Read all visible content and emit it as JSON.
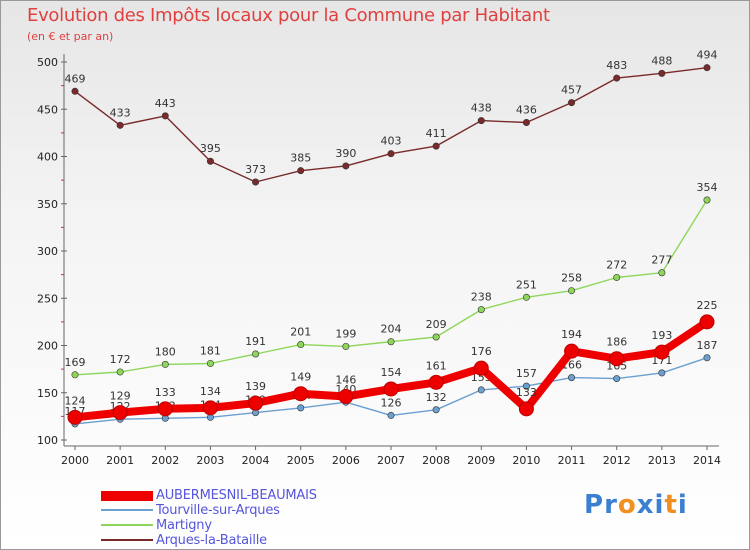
{
  "title": "Evolution des Impôts locaux pour la Commune par Habitant",
  "subtitle": "(en € et par an)",
  "logo": {
    "text": "Proxiti",
    "letters": [
      "P",
      "r",
      "o",
      "x",
      "i",
      "t",
      "i"
    ],
    "colors": [
      "#3a7fd0",
      "#3a7fd0",
      "#f09020",
      "#3a7fd0",
      "#3a7fd0",
      "#f09020",
      "#3a7fd0"
    ]
  },
  "chart_data": {
    "type": "line",
    "title": "Evolution des Impôts locaux pour la Commune par Habitant",
    "subtitle": "(en € et par an)",
    "x": [
      2000,
      2001,
      2002,
      2003,
      2004,
      2005,
      2006,
      2007,
      2008,
      2009,
      2010,
      2011,
      2012,
      2013,
      2014
    ],
    "ylim": [
      100,
      500
    ],
    "yticks": [
      100,
      150,
      200,
      250,
      300,
      350,
      400,
      450,
      500
    ],
    "grid": false,
    "legend_position": "bottom-left",
    "series": [
      {
        "name": "Arques-la-Bataille",
        "color": "#7a2a2a",
        "values": [
          469,
          433,
          443,
          395,
          373,
          385,
          390,
          403,
          411,
          438,
          436,
          457,
          483,
          488,
          494
        ],
        "labels": [
          "469",
          "433",
          "443",
          "395",
          "373",
          "385",
          "390",
          "403",
          "411",
          "438",
          "436",
          "457",
          "483",
          "488",
          "494"
        ]
      },
      {
        "name": "Martigny",
        "color": "#8ed65a",
        "values": [
          169,
          172,
          180,
          181,
          191,
          201,
          199,
          204,
          209,
          238,
          251,
          258,
          272,
          277,
          354
        ],
        "labels": [
          "169",
          "172",
          "180",
          "181",
          "191",
          "201",
          "199",
          "204",
          "209",
          "238",
          "251",
          "258",
          "272",
          "277",
          "354"
        ]
      },
      {
        "name": "Tourville-sur-Arques",
        "color": "#6a9fd0",
        "values": [
          117,
          122,
          123,
          124,
          129,
          134,
          140,
          126,
          132,
          153,
          157,
          166,
          165,
          171,
          187
        ],
        "labels": [
          "117",
          "122",
          "123",
          "124",
          "129",
          "134",
          "140",
          "126",
          "132",
          "153",
          "157",
          "166",
          "165",
          "171",
          "187"
        ]
      },
      {
        "name": "AUBERMESNIL-BEAUMAIS",
        "color": "#ee0000",
        "values": [
          124,
          129,
          133,
          134,
          139,
          149,
          146,
          154,
          161,
          176,
          133,
          194,
          186,
          193,
          225
        ],
        "labels": [
          "124",
          "129",
          "133",
          "134",
          "139",
          "149",
          "146",
          "154",
          "161",
          "176",
          "133",
          "194",
          "186",
          "193",
          "225"
        ]
      }
    ]
  },
  "legend": [
    {
      "label": "AUBERMESNIL-BEAUMAIS",
      "color": "#ee0000"
    },
    {
      "label": "Tourville-sur-Arques",
      "color": "#6a9fd0"
    },
    {
      "label": "Martigny",
      "color": "#8ed65a"
    },
    {
      "label": "Arques-la-Bataille",
      "color": "#7a2a2a"
    }
  ]
}
